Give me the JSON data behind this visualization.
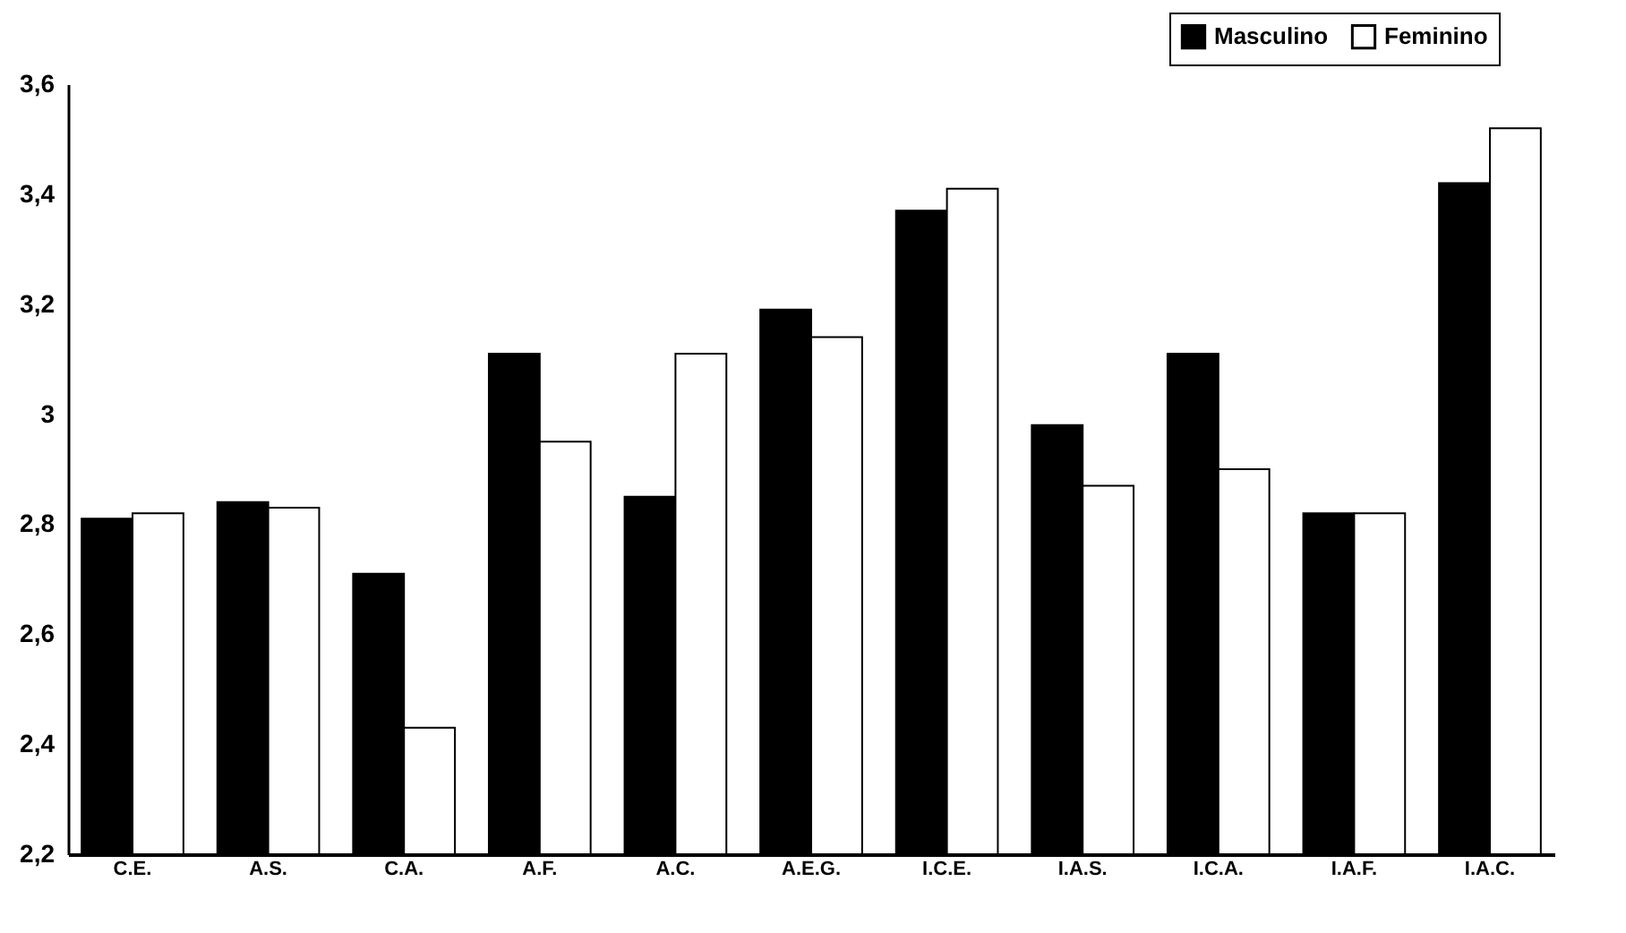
{
  "chart_data": {
    "type": "bar",
    "categories": [
      "C.E.",
      "A.S.",
      "C.A.",
      "A.F.",
      "A.C.",
      "A.E.G.",
      "I.C.E.",
      "I.A.S.",
      "I.C.A.",
      "I.A.F.",
      "I.A.C."
    ],
    "series": [
      {
        "name": "Masculino",
        "color": "#000000",
        "values": [
          2.81,
          2.84,
          2.71,
          3.11,
          2.85,
          3.19,
          3.37,
          2.98,
          3.11,
          2.82,
          3.42
        ]
      },
      {
        "name": "Feminino",
        "color": "#ffffff",
        "values": [
          2.82,
          2.83,
          2.43,
          2.95,
          3.11,
          3.14,
          3.41,
          2.87,
          2.9,
          2.82,
          3.52
        ]
      }
    ],
    "ylim": [
      2.2,
      3.6
    ],
    "yticks": [
      {
        "value": 2.2,
        "label": "2,2"
      },
      {
        "value": 2.4,
        "label": "2,4"
      },
      {
        "value": 2.6,
        "label": "2,6"
      },
      {
        "value": 2.8,
        "label": "2,8"
      },
      {
        "value": 3,
        "label": "3"
      },
      {
        "value": 3.2,
        "label": "3,2"
      },
      {
        "value": 3.4,
        "label": "3,4"
      },
      {
        "value": 3.6,
        "label": "3,6"
      }
    ],
    "grid": false,
    "legend": "top right"
  }
}
